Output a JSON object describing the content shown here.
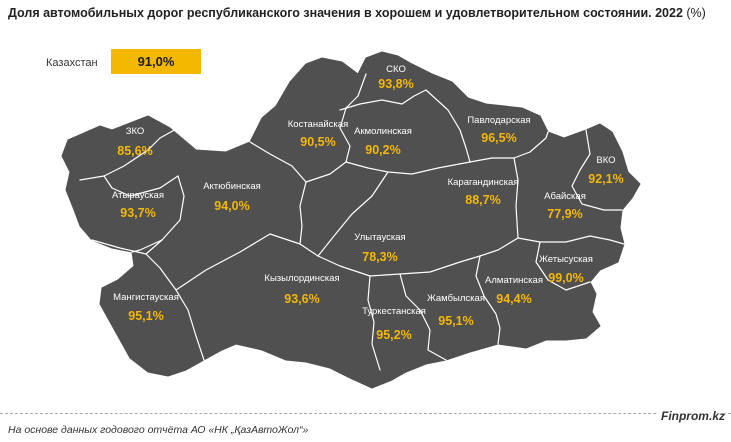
{
  "title": "Доля автомобильных дорог республиканского значения в хорошем и удовлетворительном состоянии. 2022",
  "title_unit": "(%)",
  "summary": {
    "label": "Казахстан",
    "value": "91,0%",
    "color": "#f5b800"
  },
  "map_color": "#505050",
  "border_color": "#ffffff",
  "value_color": "#f5b800",
  "regions": [
    {
      "name": "СКО",
      "value": "93,8%"
    },
    {
      "name": "Костанайская",
      "value": "90,5%"
    },
    {
      "name": "Акмолинская",
      "value": "90,2%"
    },
    {
      "name": "Павлодарская",
      "value": "96,5%"
    },
    {
      "name": "ЗКО",
      "value": "85,6%"
    },
    {
      "name": "ВКО",
      "value": "92,1%"
    },
    {
      "name": "Актюбинская",
      "value": "94,0%"
    },
    {
      "name": "Атырауская",
      "value": "93,7%"
    },
    {
      "name": "Карагандинская",
      "value": "88,7%"
    },
    {
      "name": "Абайская",
      "value": "77,9%"
    },
    {
      "name": "Улытауская",
      "value": "78,3%"
    },
    {
      "name": "Жетысуская",
      "value": "99,0%"
    },
    {
      "name": "Кызылординская",
      "value": "93,6%"
    },
    {
      "name": "Алматинская",
      "value": "94,4%"
    },
    {
      "name": "Мангистауская",
      "value": "95,1%"
    },
    {
      "name": "Туркестанская",
      "value": "95,2%"
    },
    {
      "name": "Жамбылская",
      "value": "95,1%"
    }
  ],
  "source": "На основе данных годового отчёта АО «НК „ҚазАвтоЖол“»",
  "brand": "Finprom.kz"
}
